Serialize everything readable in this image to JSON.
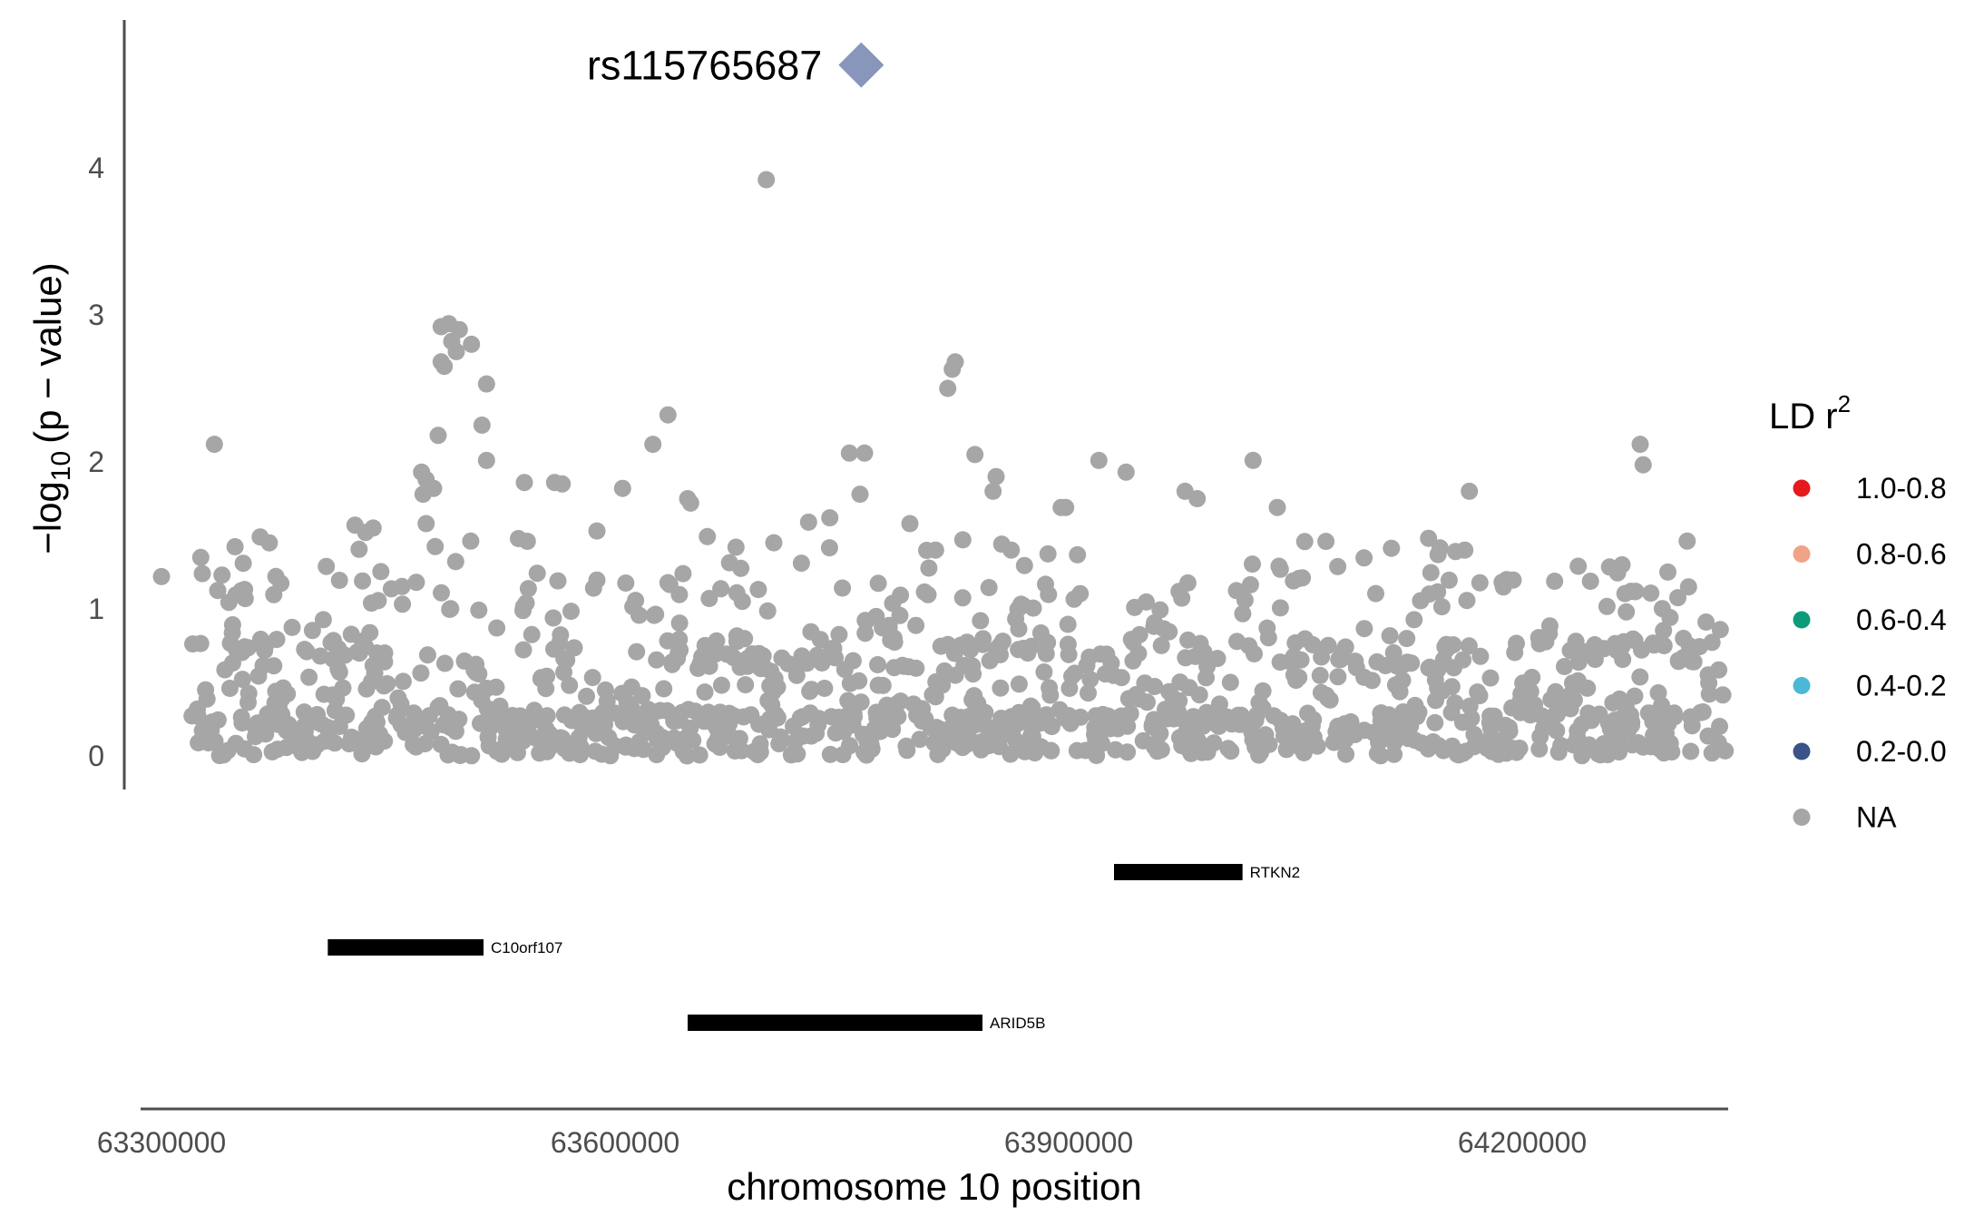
{
  "chart_data": {
    "type": "scatter",
    "xlabel": "chromosome 10 position",
    "ylabel_main": "−log",
    "ylabel_sub": "10",
    "ylabel_rest": "(p − value)",
    "xlim": [
      63270000,
      64400000
    ],
    "ylim": [
      -0.2,
      4.9
    ],
    "x_ticks": [
      {
        "value": 63300000,
        "label": "63300000"
      },
      {
        "value": 63600000,
        "label": "63600000"
      },
      {
        "value": 63900000,
        "label": "63900000"
      },
      {
        "value": 64200000,
        "label": "64200000"
      }
    ],
    "y_ticks": [
      {
        "value": 0,
        "label": "0"
      },
      {
        "value": 1,
        "label": "1"
      },
      {
        "value": 2,
        "label": "2"
      },
      {
        "value": 3,
        "label": "3"
      },
      {
        "value": 4,
        "label": "4"
      }
    ],
    "lead_snp": {
      "label": "rs115765687",
      "x": 63710000,
      "y": 4.7,
      "color": "#8796BA"
    },
    "point_color": "#A6A6A6",
    "x_range": [
      63320000,
      64335000
    ],
    "background_points_estimated_count": 1200,
    "highlighted_points": [
      [
        63700000,
        3.92
      ],
      [
        63485000,
        2.92
      ],
      [
        63490000,
        2.94
      ],
      [
        63497000,
        2.9
      ],
      [
        63492000,
        2.82
      ],
      [
        63495000,
        2.75
      ],
      [
        63505000,
        2.8
      ],
      [
        63485000,
        2.68
      ],
      [
        63487000,
        2.65
      ],
      [
        63515000,
        2.53
      ],
      [
        63825000,
        2.68
      ],
      [
        63823000,
        2.63
      ],
      [
        63820000,
        2.5
      ],
      [
        63512000,
        2.25
      ],
      [
        63335000,
        2.12
      ],
      [
        63483000,
        2.18
      ],
      [
        63625000,
        2.12
      ],
      [
        63635000,
        2.32
      ],
      [
        63838000,
        2.05
      ],
      [
        63515000,
        2.01
      ],
      [
        63755000,
        2.06
      ],
      [
        63765000,
        2.06
      ],
      [
        63920000,
        2.01
      ],
      [
        64022000,
        2.01
      ],
      [
        64278000,
        2.12
      ],
      [
        64280000,
        1.98
      ],
      [
        63938000,
        1.93
      ],
      [
        63472000,
        1.93
      ],
      [
        63475000,
        1.88
      ],
      [
        63480000,
        1.82
      ],
      [
        63473000,
        1.78
      ],
      [
        63540000,
        1.86
      ],
      [
        63560000,
        1.86
      ],
      [
        63565000,
        1.85
      ],
      [
        63605000,
        1.82
      ],
      [
        63852000,
        1.9
      ],
      [
        63850000,
        1.8
      ],
      [
        63977000,
        1.8
      ],
      [
        63985000,
        1.75
      ],
      [
        64165000,
        1.8
      ],
      [
        63648000,
        1.75
      ],
      [
        63650000,
        1.72
      ],
      [
        63728000,
        1.59
      ],
      [
        63742000,
        1.62
      ],
      [
        63762000,
        1.78
      ],
      [
        63895000,
        1.69
      ],
      [
        63898000,
        1.69
      ],
      [
        64038000,
        1.69
      ],
      [
        63428000,
        1.57
      ],
      [
        63435000,
        1.52
      ],
      [
        63440000,
        1.55
      ],
      [
        63475000,
        1.58
      ],
      [
        63588000,
        1.53
      ],
      [
        63542000,
        1.46
      ],
      [
        63705000,
        1.45
      ],
      [
        63830000,
        1.47
      ],
      [
        63862000,
        1.4
      ],
      [
        63795000,
        1.58
      ],
      [
        64138000,
        1.48
      ],
      [
        64162000,
        1.4
      ],
      [
        63326000,
        1.35
      ],
      [
        63327000,
        1.24
      ],
      [
        63300000,
        1.22
      ],
      [
        63340000,
        1.23
      ],
      [
        64310000,
        1.15
      ],
      [
        64266000,
        1.3
      ],
      [
        64237000,
        1.29
      ],
      [
        64040000,
        1.27
      ],
      [
        64275000,
        1.12
      ],
      [
        63812000,
        1.4
      ]
    ],
    "genes": [
      {
        "name": "RTKN2",
        "start": 63930000,
        "end": 64015000,
        "track": 1
      },
      {
        "name": "C10orf107",
        "start": 63410000,
        "end": 63513000,
        "track": 2
      },
      {
        "name": "ARID5B",
        "start": 63648000,
        "end": 63843000,
        "track": 3
      }
    ],
    "legend": {
      "title": "LD r",
      "title_sup": "2",
      "position": "right",
      "items": [
        {
          "label": "1.0-0.8",
          "color": "#E41A1C"
        },
        {
          "label": "0.8-0.6",
          "color": "#F2A287"
        },
        {
          "label": "0.6-0.4",
          "color": "#0B9B7B"
        },
        {
          "label": "0.4-0.2",
          "color": "#4BB8D7"
        },
        {
          "label": "0.2-0.0",
          "color": "#3A5388"
        },
        {
          "label": "NA",
          "color": "#A6A6A6"
        }
      ]
    }
  }
}
